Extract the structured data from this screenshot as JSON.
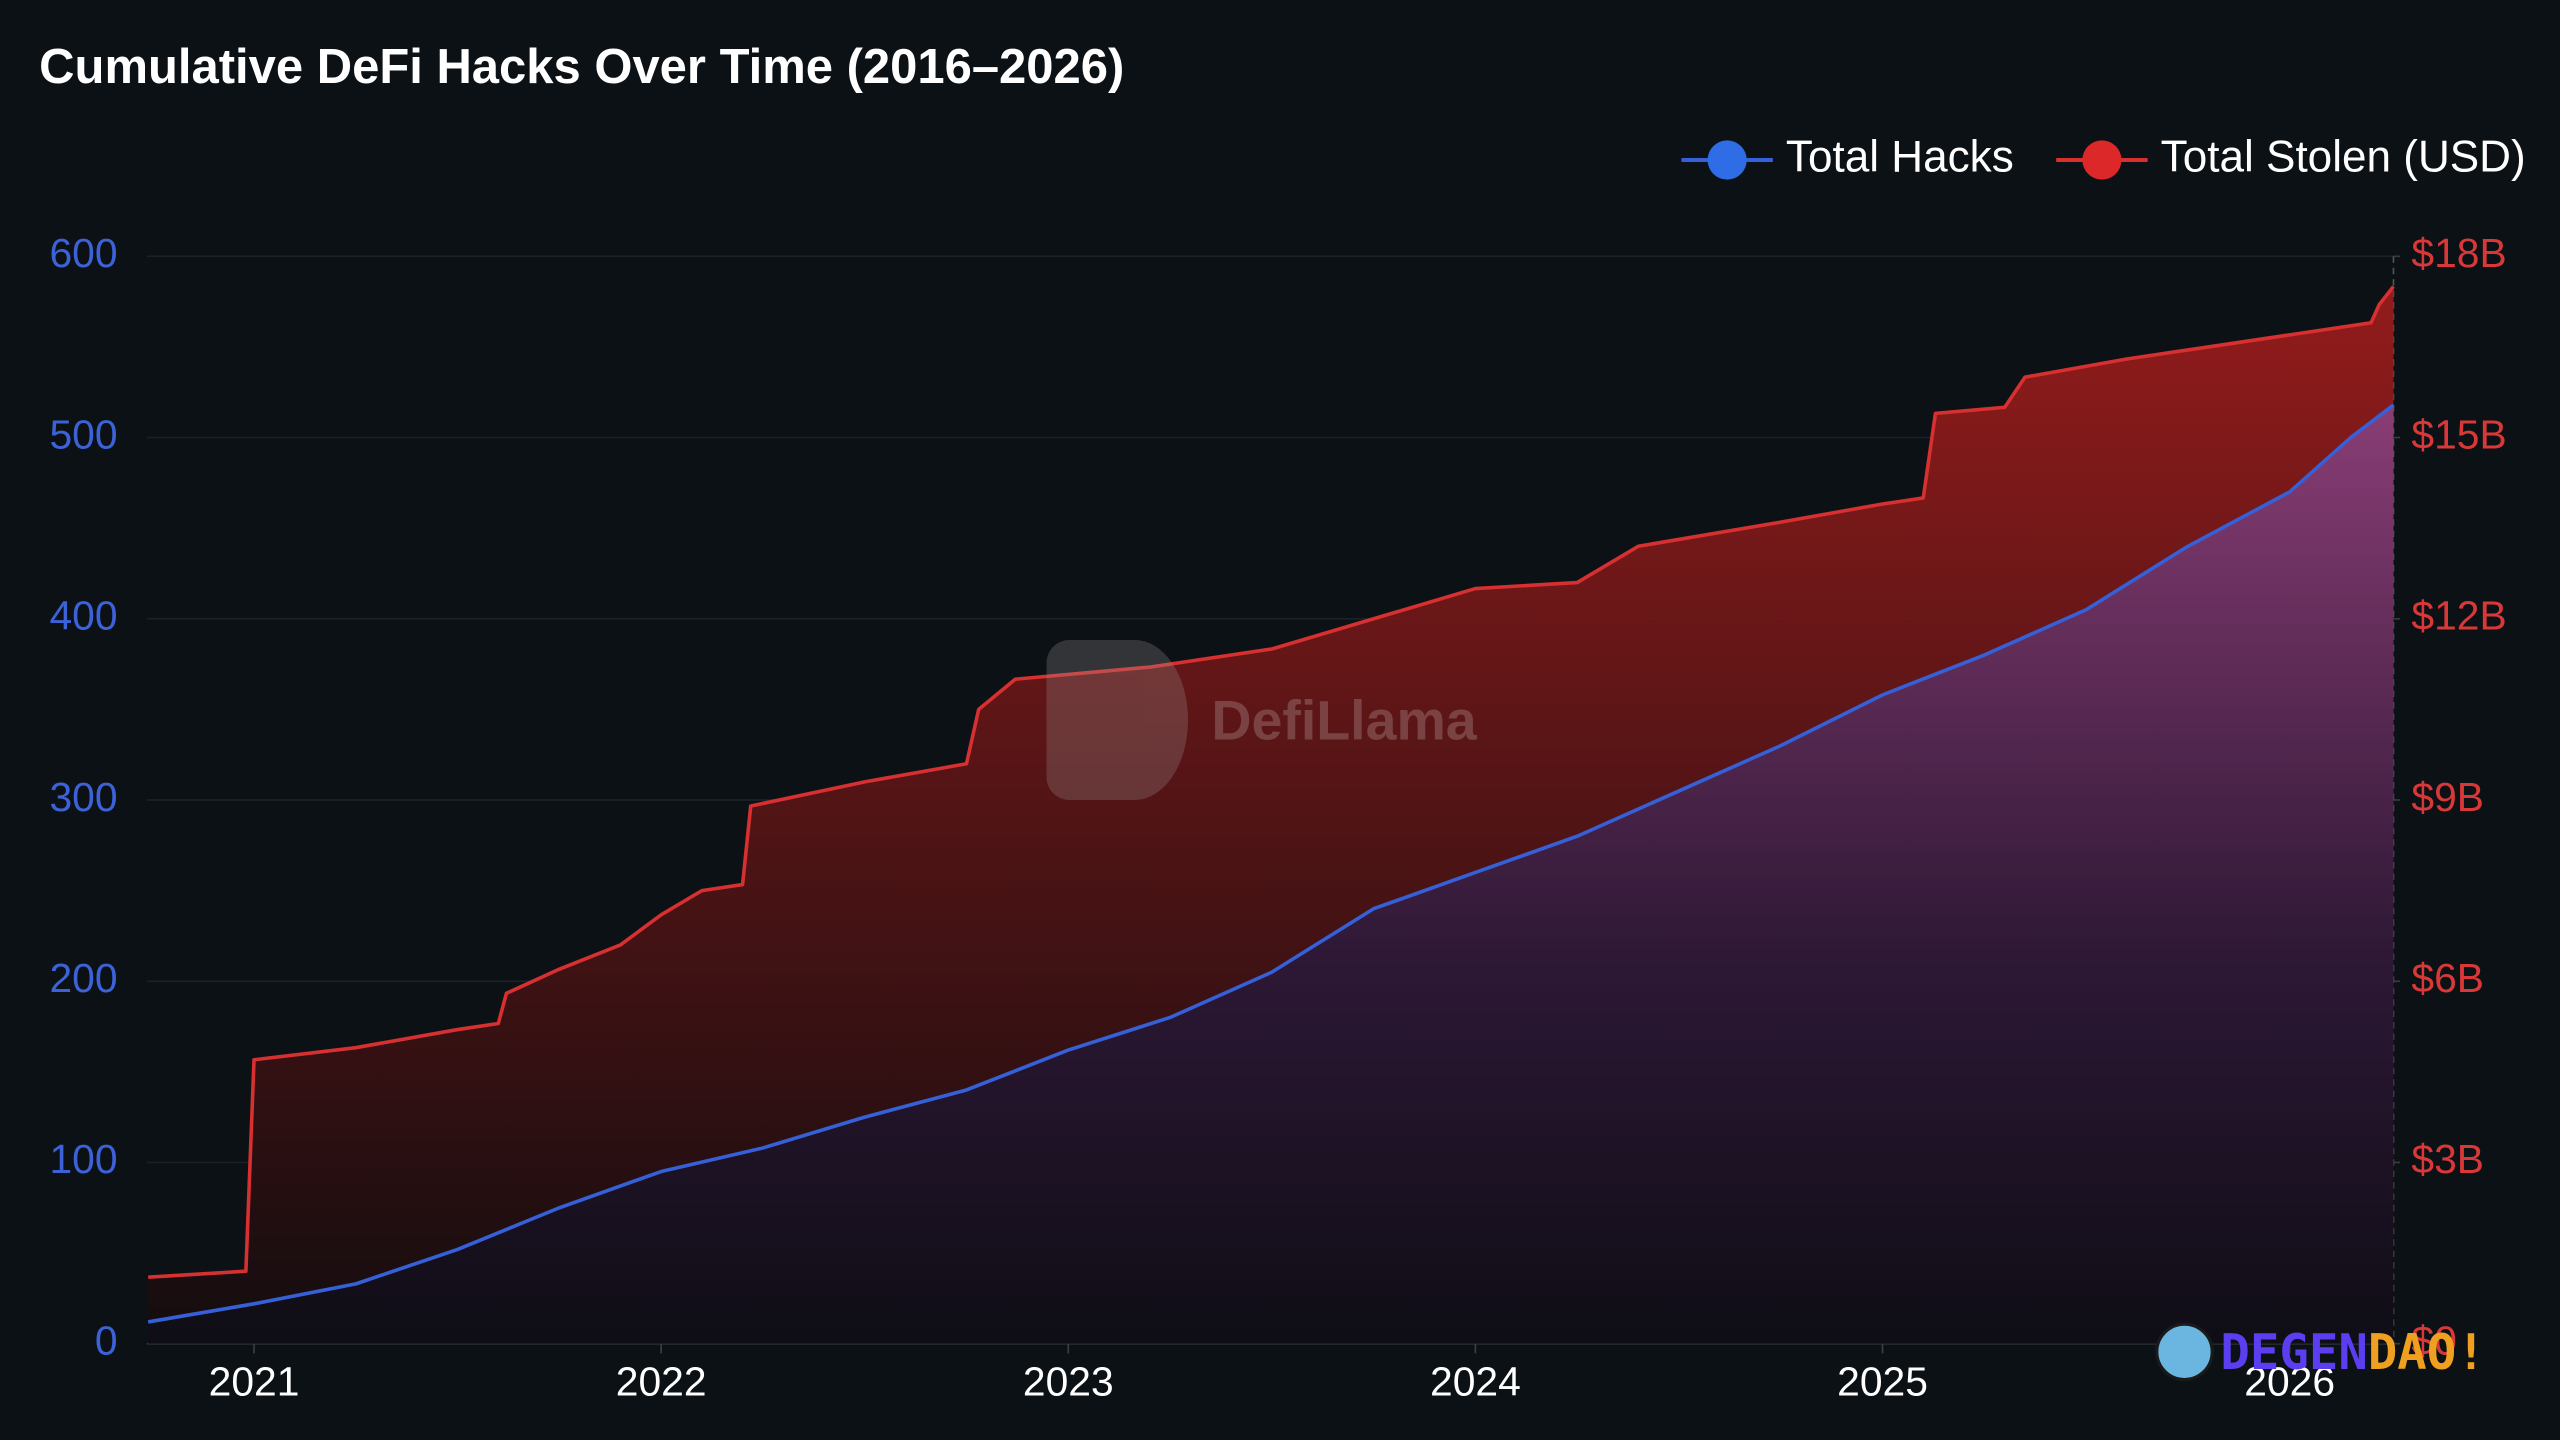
{
  "chart_data": {
    "type": "line",
    "title": "Cumulative DeFi Hacks Over Time (2016–2026)",
    "xlim": [
      2020.737,
      2026.255
    ],
    "xticks": [
      2021,
      2022,
      2023,
      2024,
      2025,
      2026
    ],
    "ylim": [
      0,
      600
    ],
    "yticks": [
      0,
      100,
      200,
      300,
      400,
      500,
      600
    ],
    "y2lim": [
      0,
      18000000000
    ],
    "y2ticks": [
      {
        "value": 0,
        "label": "$0"
      },
      {
        "value": 3000000000,
        "label": "$3B"
      },
      {
        "value": 6000000000,
        "label": "$6B"
      },
      {
        "value": 9000000000,
        "label": "$9B"
      },
      {
        "value": 12000000000,
        "label": "$12B"
      },
      {
        "value": 15000000000,
        "label": "$15B"
      },
      {
        "value": 18000000000,
        "label": "$18B"
      }
    ],
    "grid": true,
    "legend": "top-right",
    "series": [
      {
        "name": "Total Hacks",
        "color": "#3560d8",
        "marker_color": "#2f6de6",
        "x": [
          2020.74,
          2021.0,
          2021.25,
          2021.5,
          2021.75,
          2022.0,
          2022.25,
          2022.5,
          2022.75,
          2023.0,
          2023.25,
          2023.5,
          2023.75,
          2024.0,
          2024.25,
          2024.5,
          2024.75,
          2025.0,
          2025.25,
          2025.5,
          2025.75,
          2026.0,
          2026.15,
          2026.255
        ],
        "values": [
          12,
          22,
          33,
          52,
          75,
          95,
          108,
          125,
          140,
          162,
          180,
          205,
          240,
          260,
          280,
          305,
          330,
          358,
          380,
          405,
          440,
          470,
          500,
          518
        ]
      },
      {
        "name": "Total Stolen (USD)",
        "color": "#d63030",
        "marker_color": "#dc2828",
        "axis": "y2",
        "x": [
          2020.74,
          2020.98,
          2021.0,
          2021.25,
          2021.5,
          2021.6,
          2021.62,
          2021.75,
          2021.9,
          2022.0,
          2022.1,
          2022.2,
          2022.22,
          2022.5,
          2022.75,
          2022.78,
          2022.87,
          2023.2,
          2023.5,
          2023.75,
          2024.0,
          2024.25,
          2024.4,
          2024.75,
          2025.0,
          2025.1,
          2025.13,
          2025.3,
          2025.35,
          2025.6,
          2025.8,
          2026.0,
          2026.2,
          2026.22,
          2026.255
        ],
        "values": [
          1100000000,
          1200000000,
          4700000000,
          4900000000,
          5200000000,
          5300000000,
          5800000000,
          6200000000,
          6600000000,
          7100000000,
          7500000000,
          7600000000,
          8900000000,
          9300000000,
          9600000000,
          10500000000,
          11000000000,
          11200000000,
          11500000000,
          12000000000,
          12500000000,
          12600000000,
          13200000000,
          13600000000,
          13900000000,
          14000000000,
          15400000000,
          15500000000,
          16000000000,
          16300000000,
          16500000000,
          16700000000,
          16900000000,
          17200000000,
          17500000000
        ]
      }
    ]
  },
  "watermark": "DefiLlama",
  "badge": {
    "first": "DEGEN",
    "second": "DAO!"
  }
}
